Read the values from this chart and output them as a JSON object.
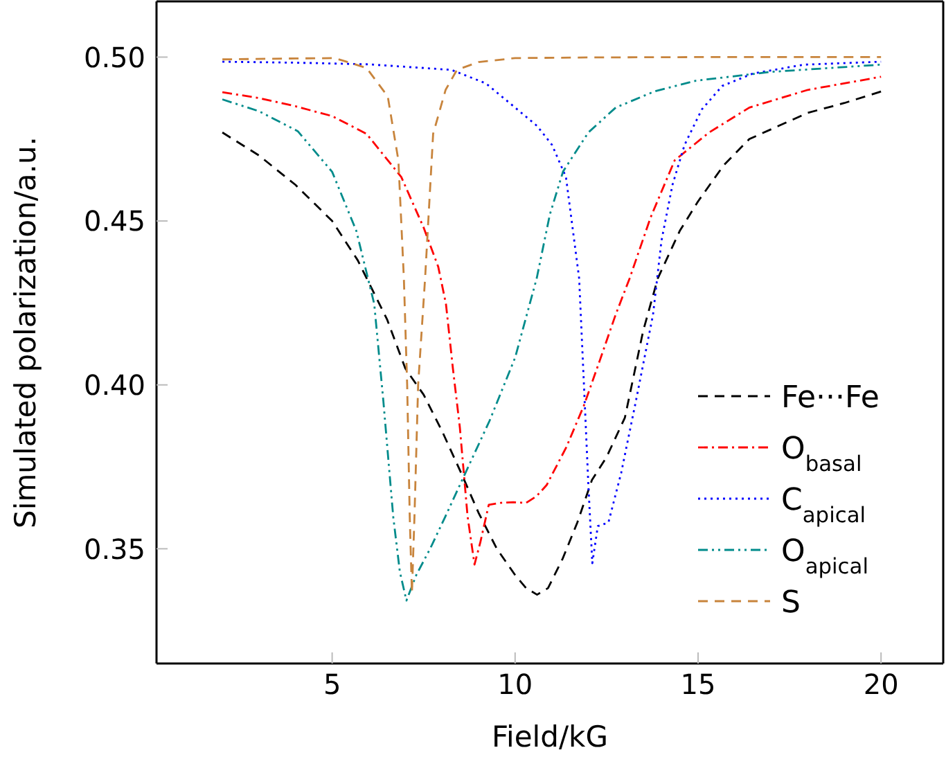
{
  "chart_data": {
    "type": "line",
    "xlabel": "Field/kG",
    "ylabel": "Simulated polarization/a.u.",
    "xlim": [
      0.2,
      21.7
    ],
    "xticks": [
      5,
      10,
      15,
      20
    ],
    "ylim": [
      0.315,
      0.517
    ],
    "yticks": [
      {
        "value": 0.35,
        "label": "0.35"
      },
      {
        "value": 0.4,
        "label": "0.40"
      },
      {
        "value": 0.45,
        "label": "0.45"
      },
      {
        "value": 0.5,
        "label": "0.50"
      }
    ],
    "legend": "bottom right",
    "marker": "none",
    "series": [
      {
        "name": "Fe···Fe",
        "color": "#000000",
        "line_style": "dashed",
        "x": [
          2,
          3,
          4,
          5,
          5.7,
          6.5,
          7,
          7.5,
          8,
          8.55,
          9,
          9.5,
          10,
          10.3,
          10.6,
          10.9,
          11.3,
          11.7,
          12.1,
          12.5,
          13,
          13.5,
          13.9,
          14.5,
          15,
          15.7,
          16.4,
          17.2,
          18,
          19,
          20
        ],
        "values": [
          0.477,
          0.47,
          0.461,
          0.45,
          0.438,
          0.42,
          0.405,
          0.397,
          0.386,
          0.3725,
          0.361,
          0.35,
          0.342,
          0.338,
          0.336,
          0.338,
          0.347,
          0.358,
          0.371,
          0.378,
          0.39,
          0.4165,
          0.4325,
          0.447,
          0.456,
          0.467,
          0.475,
          0.479,
          0.483,
          0.486,
          0.4895
        ]
      },
      {
        "name": "O$_{basal}$",
        "color": "#ff0000",
        "line_style": "dashdot",
        "x": [
          2,
          3,
          4,
          5,
          5.94,
          6.89,
          7.5,
          7.9,
          8.11,
          8.3,
          8.49,
          8.7,
          8.89,
          9.05,
          9.28,
          9.6,
          9.95,
          10.3,
          10.58,
          10.86,
          11.4,
          11.88,
          12.3,
          12.75,
          13.13,
          13.7,
          14.36,
          15.3,
          16.4,
          18,
          20
        ],
        "values": [
          0.4893,
          0.4875,
          0.485,
          0.482,
          0.4766,
          0.4634,
          0.448,
          0.436,
          0.4247,
          0.405,
          0.387,
          0.36,
          0.3452,
          0.352,
          0.3634,
          0.364,
          0.3642,
          0.364,
          0.366,
          0.3694,
          0.381,
          0.3937,
          0.407,
          0.4215,
          0.4325,
          0.451,
          0.4685,
          0.477,
          0.4846,
          0.49,
          0.494
        ]
      },
      {
        "name": "C$_{apical}$",
        "color": "#0000ff",
        "line_style": "dotted",
        "x": [
          2,
          4,
          6,
          8.26,
          9.2,
          10,
          10.6,
          11.01,
          11.39,
          11.75,
          11.88,
          12,
          12.11,
          12.26,
          12.55,
          12.9,
          13.3,
          13.77,
          14,
          14.3,
          14.63,
          15.1,
          15.66,
          16.5,
          17.9,
          20
        ],
        "values": [
          0.4986,
          0.4983,
          0.4978,
          0.4961,
          0.492,
          0.4846,
          0.479,
          0.4732,
          0.4634,
          0.4325,
          0.4003,
          0.37,
          0.3456,
          0.3569,
          0.358,
          0.3732,
          0.395,
          0.4215,
          0.444,
          0.461,
          0.4732,
          0.484,
          0.4912,
          0.495,
          0.4977,
          0.4986
        ]
      },
      {
        "name": "O$_{apical}$",
        "color": "#008b8b",
        "line_style": "dashdotdot",
        "x": [
          2,
          3,
          4.06,
          5,
          5.66,
          6.15,
          6.4,
          6.67,
          6.85,
          7.03,
          7.3,
          7.69,
          8.1,
          8.55,
          9.3,
          10,
          10.59,
          10.95,
          11.31,
          12,
          12.75,
          13.8,
          14.94,
          17,
          20
        ],
        "values": [
          0.4871,
          0.4835,
          0.4774,
          0.465,
          0.447,
          0.4247,
          0.395,
          0.3597,
          0.343,
          0.3342,
          0.342,
          0.3503,
          0.36,
          0.3709,
          0.389,
          0.4083,
          0.4325,
          0.452,
          0.4651,
          0.477,
          0.4846,
          0.4895,
          0.4928,
          0.4955,
          0.4977
        ]
      },
      {
        "name": "S",
        "color": "#c8843c",
        "line_style": "dashed",
        "x": [
          2,
          4,
          5.07,
          5.94,
          6.52,
          6.81,
          6.96,
          7.05,
          7.12,
          7.18,
          7.25,
          7.35,
          7.54,
          7.76,
          8.1,
          8.41,
          9,
          10,
          12,
          15,
          20
        ],
        "values": [
          0.4993,
          0.4996,
          0.4997,
          0.4967,
          0.488,
          0.4685,
          0.4325,
          0.4,
          0.36,
          0.3365,
          0.36,
          0.4,
          0.4325,
          0.4766,
          0.49,
          0.4961,
          0.4985,
          0.4997,
          0.4999,
          0.5,
          0.5
        ]
      }
    ]
  }
}
